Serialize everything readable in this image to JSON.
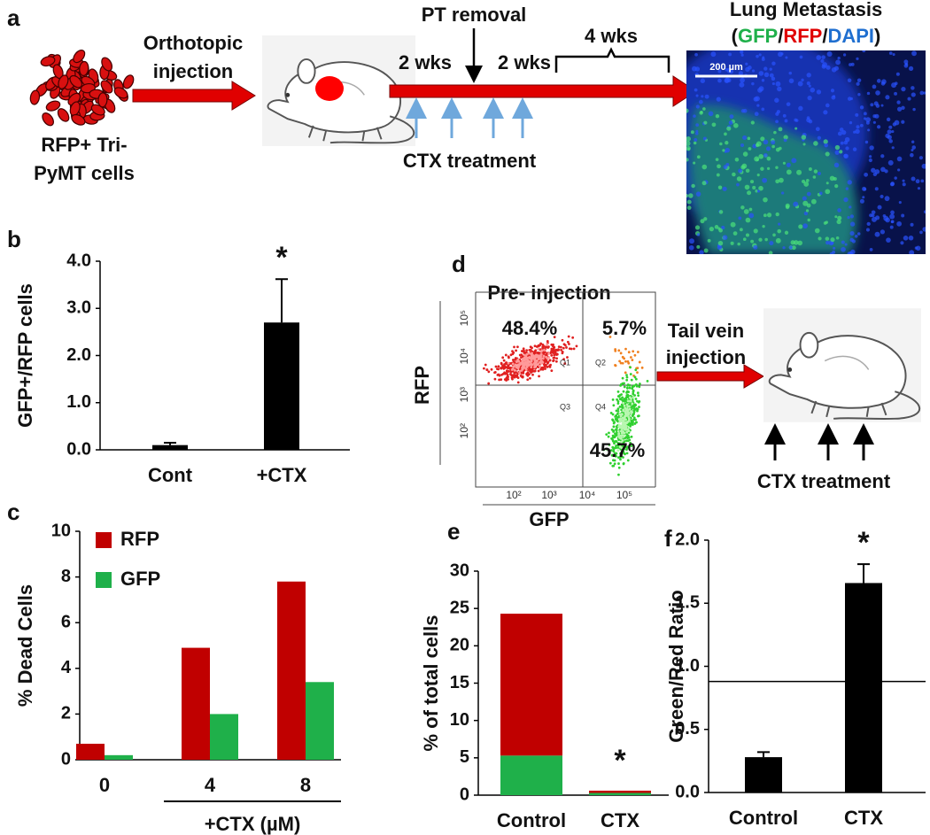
{
  "diagram_a": {
    "label": "a",
    "cells_label": [
      "RFP+ Tri-",
      "PyMT cells"
    ],
    "injection_label": [
      "Orthotopic",
      "injection"
    ],
    "pt_removal": "PT removal",
    "interval_1": "2 wks",
    "interval_2": "2 wks",
    "interval_3": "4 wks",
    "treatment": "CTX treatment",
    "image_title": "Lung Metastasis",
    "stain_open": "(",
    "stain_gfp": "GFP",
    "separator_1": "/",
    "stain_rfp": "RFP",
    "separator_2": "/",
    "stain_dapi": "DAPI",
    "stain_close": ")",
    "scale_bar": "200 µm"
  },
  "diagram_d": {
    "label": "d",
    "plot_title": "Pre- injection",
    "y_label": "RFP",
    "x_label": "GFP",
    "quadrant_percentages": [
      "48.4%",
      "5.7%",
      "45.7%"
    ],
    "quadrants": [
      "Q1",
      "Q2",
      "Q3",
      "Q4"
    ],
    "yticks": [
      "10²",
      "10³",
      "10⁴",
      "10⁵"
    ],
    "xticks": [
      "10²",
      "10³",
      "10⁴",
      "10⁵"
    ],
    "route": [
      "Tail vein",
      "injection"
    ],
    "treatment": "CTX treatment"
  },
  "chart_data": [
    {
      "type": "bar",
      "label": "b",
      "y_label": "GFP+/RFP cells",
      "categories": [
        "Cont",
        "+CTX"
      ],
      "values": [
        0.1,
        2.7
      ],
      "errors": [
        0.05,
        0.92
      ],
      "color": "#000000",
      "annotation": "*",
      "ylim": [
        0,
        4
      ],
      "yticks": [
        {
          "value": 0,
          "label": "0.0"
        },
        {
          "value": 1,
          "label": "1.0"
        },
        {
          "value": 2,
          "label": "2.0"
        },
        {
          "value": 3,
          "label": "3.0"
        },
        {
          "value": 4,
          "label": "4.0"
        }
      ]
    },
    {
      "type": "grouped_bar",
      "label": "c",
      "y_label": "% Dead Cells",
      "categories": [
        "0",
        "4",
        "8"
      ],
      "group_label": "+CTX (µM)",
      "series": [
        {
          "name": "RFP",
          "color": "#c00000",
          "values": [
            0.7,
            4.9,
            7.8
          ]
        },
        {
          "name": "GFP",
          "color": "#1fb04a",
          "values": [
            0.2,
            2.0,
            3.4
          ]
        }
      ],
      "ylim": [
        0,
        10
      ],
      "yticks": [
        0,
        2,
        4,
        6,
        8,
        10
      ],
      "legend": "upper left"
    },
    {
      "type": "stacked_bar",
      "label": "e",
      "y_label": "% of total cells",
      "categories": [
        "Control",
        "CTX"
      ],
      "series": [
        {
          "color": "#1fb04a",
          "values": [
            5.3,
            0.3
          ]
        },
        {
          "color": "#c00000",
          "values": [
            19.0,
            0.3
          ]
        }
      ],
      "annotation": "*",
      "ylim": [
        0,
        30
      ],
      "yticks": [
        0,
        5,
        10,
        15,
        20,
        25,
        30
      ]
    },
    {
      "type": "bar",
      "label": "f",
      "y_label": "Green/Red Ratio",
      "categories": [
        "Control",
        "CTX"
      ],
      "values": [
        0.28,
        1.66
      ],
      "errors": [
        0.04,
        0.15
      ],
      "color": "#000000",
      "annotation": "*",
      "reference_line": 0.88,
      "ylim": [
        0,
        2
      ],
      "yticks": [
        {
          "value": 0,
          "label": "0.0"
        },
        {
          "value": 0.5,
          "label": "0.5"
        },
        {
          "value": 1,
          "label": "1.0"
        },
        {
          "value": 1.5,
          "label": "1.5"
        },
        {
          "value": 2,
          "label": "2.0"
        }
      ]
    }
  ]
}
